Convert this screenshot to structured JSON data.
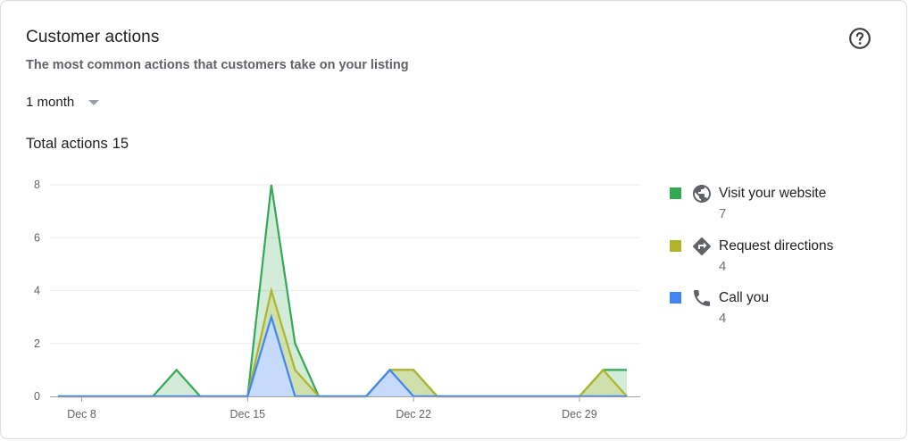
{
  "card": {
    "title": "Customer actions",
    "subtitle": "The most common actions that customers take on your listing",
    "period_label": "1 month",
    "total_label": "Total actions",
    "total_value": "15"
  },
  "legend": [
    {
      "name": "Visit your website",
      "value": "7",
      "color": "#34a853",
      "icon": "globe-icon"
    },
    {
      "name": "Request directions",
      "value": "4",
      "color": "#afb42b",
      "icon": "directions-icon"
    },
    {
      "name": "Call you",
      "value": "4",
      "color": "#4285f4",
      "icon": "phone-icon"
    }
  ],
  "chart_data": {
    "type": "area",
    "x": [
      "Dec 7",
      "Dec 8",
      "Dec 9",
      "Dec 10",
      "Dec 11",
      "Dec 12",
      "Dec 13",
      "Dec 14",
      "Dec 15",
      "Dec 16",
      "Dec 17",
      "Dec 18",
      "Dec 19",
      "Dec 20",
      "Dec 21",
      "Dec 22",
      "Dec 23",
      "Dec 24",
      "Dec 25",
      "Dec 26",
      "Dec 27",
      "Dec 28",
      "Dec 29",
      "Dec 30",
      "Dec 31"
    ],
    "x_tick_labels": [
      "Dec 8",
      "Dec 15",
      "Dec 22",
      "Dec 29"
    ],
    "y_tick_labels": [
      "0",
      "2",
      "4",
      "6",
      "8"
    ],
    "ylim": [
      0,
      8
    ],
    "grid": true,
    "legend_position": "right",
    "series": [
      {
        "name": "Visit your website",
        "color": "#34a853",
        "values": [
          0,
          0,
          0,
          0,
          0,
          1,
          0,
          0,
          0,
          8,
          2,
          0,
          0,
          0,
          1,
          1,
          0,
          0,
          0,
          0,
          0,
          0,
          0,
          1,
          1
        ]
      },
      {
        "name": "Request directions",
        "color": "#afb42b",
        "values": [
          0,
          0,
          0,
          0,
          0,
          0,
          0,
          0,
          0,
          4,
          1,
          0,
          0,
          0,
          1,
          1,
          0,
          0,
          0,
          0,
          0,
          0,
          0,
          1,
          0
        ]
      },
      {
        "name": "Call you",
        "color": "#4285f4",
        "values": [
          0,
          0,
          0,
          0,
          0,
          0,
          0,
          0,
          0,
          3,
          0,
          0,
          0,
          0,
          1,
          0,
          0,
          0,
          0,
          0,
          0,
          0,
          0,
          0,
          0
        ]
      }
    ]
  }
}
